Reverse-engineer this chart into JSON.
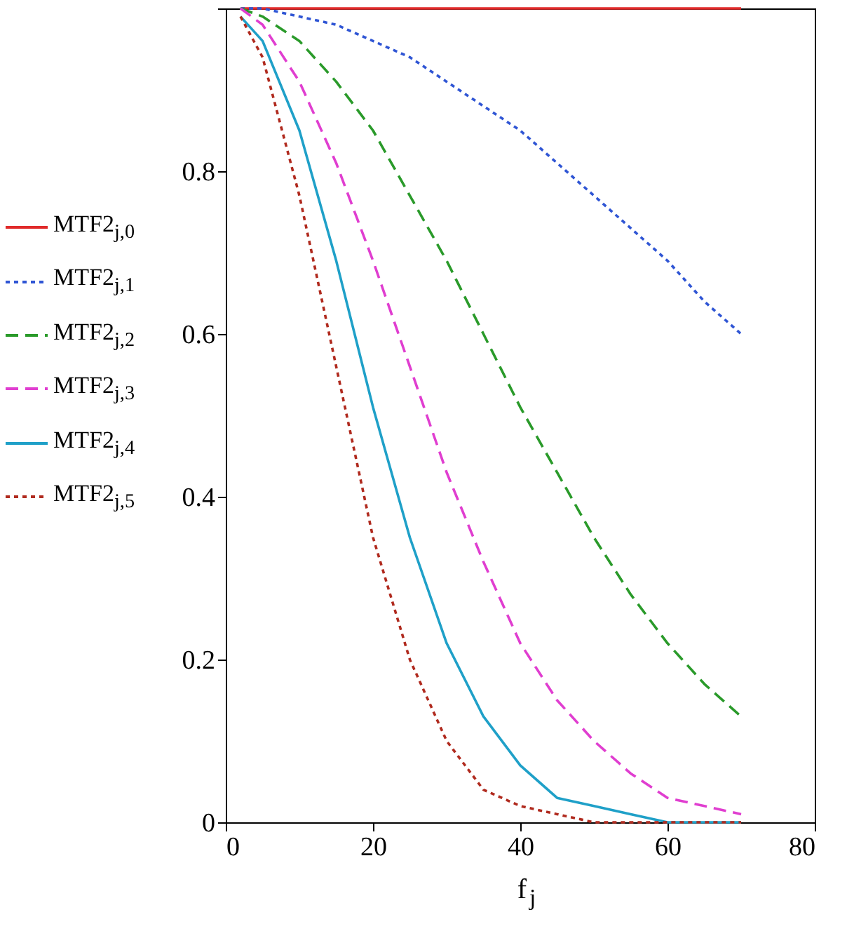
{
  "chart_data": {
    "type": "line",
    "xlabel": "f$_{j}$",
    "legend": "left",
    "x": [
      2,
      5,
      10,
      15,
      20,
      25,
      30,
      35,
      40,
      45,
      50,
      55,
      60,
      65,
      70
    ],
    "xlim": [
      0,
      80
    ],
    "xticks": [
      0,
      20,
      40,
      60,
      80
    ],
    "ylim": [
      0,
      1
    ],
    "yticks": [
      0,
      0.2,
      0.4,
      0.6,
      0.8,
      {
        "value": 1,
        "label": null
      }
    ],
    "grid": false,
    "series": [
      {
        "name": "MTF2$_{j,0}$",
        "color": "#e02a2a",
        "line_style": "solid",
        "values": [
          1,
          1,
          1,
          1,
          1,
          1,
          1,
          1,
          1,
          1,
          1,
          1,
          1,
          1,
          1
        ]
      },
      {
        "name": "MTF2$_{j,1}$",
        "color": "#2f55d4",
        "line_style": "dotted",
        "values": [
          1.0,
          1.0,
          0.99,
          0.98,
          0.96,
          0.94,
          0.91,
          0.88,
          0.85,
          0.81,
          0.77,
          0.73,
          0.69,
          0.64,
          0.6
        ]
      },
      {
        "name": "MTF2$_{j,2}$",
        "color": "#2a9a2a",
        "line_style": "dashed",
        "values": [
          1.0,
          0.99,
          0.96,
          0.91,
          0.85,
          0.77,
          0.69,
          0.6,
          0.51,
          0.43,
          0.35,
          0.28,
          0.22,
          0.17,
          0.13
        ]
      },
      {
        "name": "MTF2$_{j,3}$",
        "color": "#e03ed0",
        "line_style": "dashed",
        "values": [
          1.0,
          0.98,
          0.91,
          0.81,
          0.69,
          0.56,
          0.43,
          0.32,
          0.22,
          0.15,
          0.1,
          0.06,
          0.03,
          0.02,
          0.01
        ]
      },
      {
        "name": "MTF2$_{j,4}$",
        "color": "#1fa0c8",
        "line_style": "solid",
        "values": [
          0.99,
          0.96,
          0.85,
          0.69,
          0.51,
          0.35,
          0.22,
          0.13,
          0.07,
          0.03,
          0.02,
          0.01,
          0,
          0,
          0
        ]
      },
      {
        "name": "MTF2$_{j,5}$",
        "color": "#b02a1e",
        "line_style": "dotted",
        "values": [
          0.99,
          0.94,
          0.77,
          0.56,
          0.35,
          0.2,
          0.1,
          0.04,
          0.02,
          0.01,
          0,
          0,
          0,
          0,
          0
        ]
      }
    ]
  }
}
